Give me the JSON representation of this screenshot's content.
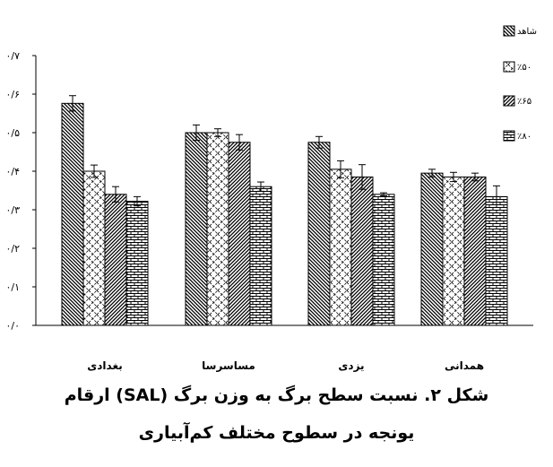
{
  "chart_data": {
    "type": "bar",
    "categories": [
      "همدانی",
      "یزدی",
      "مساسرسا",
      "بغدادی"
    ],
    "series": [
      {
        "name": "شاهد",
        "values": [
          0.395,
          0.475,
          0.5,
          0.576
        ],
        "errors": [
          0.01,
          0.015,
          0.02,
          0.02
        ],
        "pattern": "back-diag"
      },
      {
        "name": "٪۵۰",
        "values": [
          0.385,
          0.405,
          0.5,
          0.4
        ],
        "errors": [
          0.012,
          0.022,
          0.01,
          0.016
        ],
        "pattern": "check"
      },
      {
        "name": "٪۶۵",
        "values": [
          0.385,
          0.385,
          0.475,
          0.34
        ],
        "errors": [
          0.01,
          0.032,
          0.02,
          0.02
        ],
        "pattern": "fwd-diag"
      },
      {
        "name": "٪۸۰",
        "values": [
          0.334,
          0.34,
          0.36,
          0.322
        ],
        "errors": [
          0.028,
          0.004,
          0.012,
          0.012
        ],
        "pattern": "brick"
      }
    ],
    "ylim": [
      0,
      0.7
    ],
    "yticks": [
      "۰/۰",
      "۰/۱",
      "۰/۲",
      "۰/۳",
      "۰/۴",
      "۰/۵",
      "۰/۶",
      "۰/۷"
    ],
    "legend_position": "top-right",
    "grid": false
  },
  "caption": {
    "line1": "شکل ۲. نسبت سطح برگ به وزن برگ (SAL) ارقام",
    "line2": "یونجه در سطوح مختلف کم‌آبیاری"
  }
}
